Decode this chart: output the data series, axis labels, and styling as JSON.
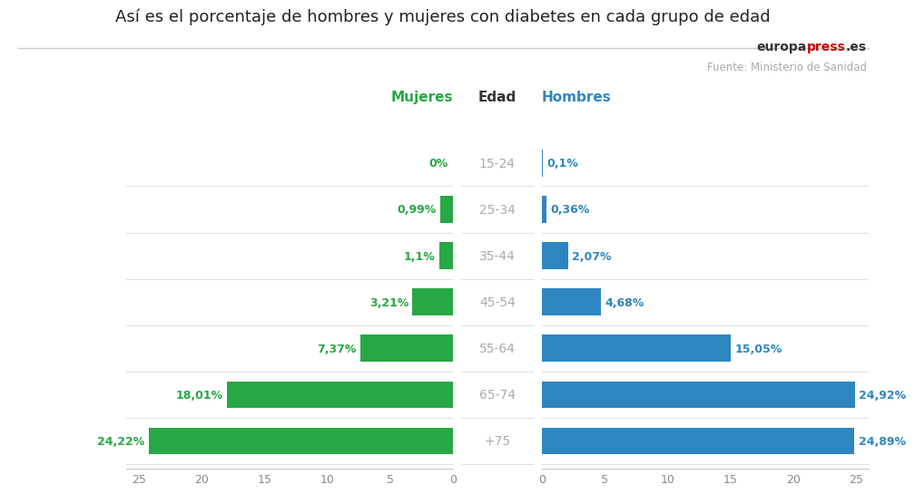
{
  "title": "Así es el porcentaje de hombres y mujeres con diabetes en cada grupo de edad",
  "age_groups": [
    "15-24",
    "25-34",
    "35-44",
    "45-54",
    "55-64",
    "65-74",
    "+75"
  ],
  "mujeres_values": [
    0.0,
    0.99,
    1.1,
    3.21,
    7.37,
    18.01,
    24.22
  ],
  "hombres_values": [
    0.1,
    0.36,
    2.07,
    4.68,
    15.05,
    24.92,
    24.89
  ],
  "mujeres_labels": [
    "0%",
    "0,99%",
    "1,1%",
    "3,21%",
    "7,37%",
    "18,01%",
    "24,22%"
  ],
  "hombres_labels": [
    "0,1%",
    "0,36%",
    "2,07%",
    "4,68%",
    "15,05%",
    "24,92%",
    "24,89%"
  ],
  "color_mujeres": "#28a745",
  "color_hombres": "#2e86c1",
  "color_age_label": "#aaaaaa",
  "color_mujeres_header": "#28a745",
  "color_hombres_header": "#2e86c1",
  "color_edad_header": "#333333",
  "background_color": "#ffffff",
  "xlim": 26,
  "xticks": [
    0,
    5,
    10,
    15,
    20,
    25
  ],
  "header_mujeres": "Mujeres",
  "header_edad": "Edad",
  "header_hombres": "Hombres",
  "source_europa": "europa",
  "source_press": "press",
  "source_es": ".es",
  "source_subtext": "Fuente: Ministerio de Sanidad",
  "bar_height": 0.58,
  "grid_color": "#e0e0e0",
  "spine_color": "#cccccc"
}
